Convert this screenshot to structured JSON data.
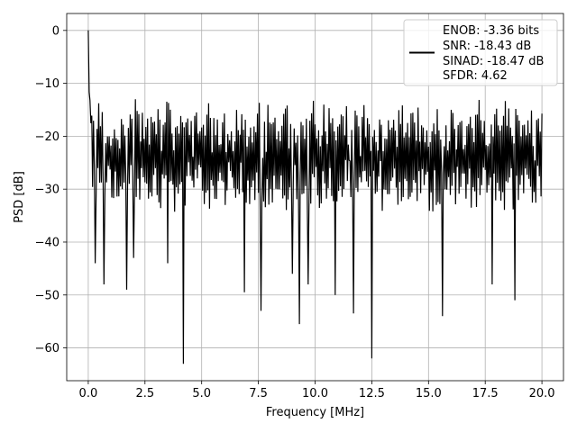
{
  "chart_data": {
    "type": "line",
    "title": "",
    "xlabel": "Frequency [MHz]",
    "ylabel": "PSD [dB]",
    "xlim": [
      -0.95,
      20.95
    ],
    "ylim": [
      -66.2,
      3.2
    ],
    "xticks": [
      0.0,
      2.5,
      5.0,
      7.5,
      10.0,
      12.5,
      15.0,
      17.5,
      20.0
    ],
    "xtick_labels": [
      "0.0",
      "2.5",
      "5.0",
      "7.5",
      "10.0",
      "12.5",
      "15.0",
      "17.5",
      "20.0"
    ],
    "yticks": [
      0,
      -10,
      -20,
      -30,
      -40,
      -50,
      -60
    ],
    "ytick_labels": [
      "0",
      "−10",
      "−20",
      "−30",
      "−40",
      "−50",
      "−60"
    ],
    "grid": true,
    "legend_position": "top-right",
    "series": [
      {
        "name": "",
        "color": "#000000",
        "note": "dense noisy power spectral density, ~500 points between 0 and 20 MHz; values between about -63 dB and 0 dB",
        "x_range": [
          0.0,
          20.0
        ],
        "peak": {
          "x": 0.0,
          "y": 0.0
        },
        "noise_band_top": [
          -19,
          -12
        ],
        "noise_band_bottom": [
          -35,
          -28
        ],
        "notable_dips": [
          {
            "x": 0.3,
            "y": -44
          },
          {
            "x": 0.7,
            "y": -48
          },
          {
            "x": 1.7,
            "y": -49
          },
          {
            "x": 2.0,
            "y": -43
          },
          {
            "x": 3.5,
            "y": -44
          },
          {
            "x": 4.2,
            "y": -63
          },
          {
            "x": 6.9,
            "y": -49.5
          },
          {
            "x": 7.6,
            "y": -53
          },
          {
            "x": 9.0,
            "y": -46
          },
          {
            "x": 9.3,
            "y": -55.5
          },
          {
            "x": 9.7,
            "y": -48
          },
          {
            "x": 10.9,
            "y": -50
          },
          {
            "x": 11.7,
            "y": -53.5
          },
          {
            "x": 12.5,
            "y": -62
          },
          {
            "x": 15.6,
            "y": -54
          },
          {
            "x": 17.8,
            "y": -48
          },
          {
            "x": 18.8,
            "y": -51
          }
        ]
      }
    ],
    "legend_lines": [
      "ENOB: -3.36 bits",
      "SNR: -18.43 dB",
      "SINAD: -18.47 dB",
      "SFDR: 4.62"
    ]
  }
}
